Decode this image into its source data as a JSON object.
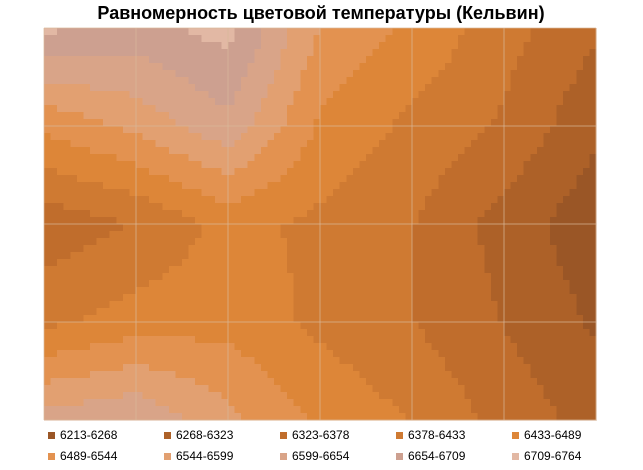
{
  "chart_data": {
    "type": "contour",
    "title": "Равномерность цветовой температуры (Кельвин)",
    "grid": true,
    "z": [
      [
        6720,
        6690,
        6730,
        6540,
        6480,
        6400,
        6330
      ],
      [
        6500,
        6560,
        6640,
        6480,
        6420,
        6370,
        6280
      ],
      [
        6340,
        6380,
        6450,
        6420,
        6380,
        6300,
        6230
      ],
      [
        6420,
        6460,
        6470,
        6420,
        6380,
        6320,
        6260
      ],
      [
        6620,
        6650,
        6560,
        6480,
        6430,
        6360,
        6300
      ]
    ],
    "bands": [
      {
        "label": "6213-6268",
        "from": 6213,
        "to": 6268,
        "color": "#9a5626"
      },
      {
        "label": "6268-6323",
        "from": 6268,
        "to": 6323,
        "color": "#ad6128"
      },
      {
        "label": "6323-6378",
        "from": 6323,
        "to": 6378,
        "color": "#c06d2c"
      },
      {
        "label": "6378-6433",
        "from": 6378,
        "to": 6433,
        "color": "#cf7a32"
      },
      {
        "label": "6433-6489",
        "from": 6433,
        "to": 6489,
        "color": "#dd8638"
      },
      {
        "label": "6489-6544",
        "from": 6489,
        "to": 6544,
        "color": "#e39250"
      },
      {
        "label": "6544-6599",
        "from": 6544,
        "to": 6599,
        "color": "#e2a071"
      },
      {
        "label": "6599-6654",
        "from": 6599,
        "to": 6654,
        "color": "#d9a488"
      },
      {
        "label": "6654-6709",
        "from": 6654,
        "to": 6709,
        "color": "#cda090"
      },
      {
        "label": "6709-6764",
        "from": 6709,
        "to": 6764,
        "color": "#e2b8a4"
      }
    ]
  }
}
